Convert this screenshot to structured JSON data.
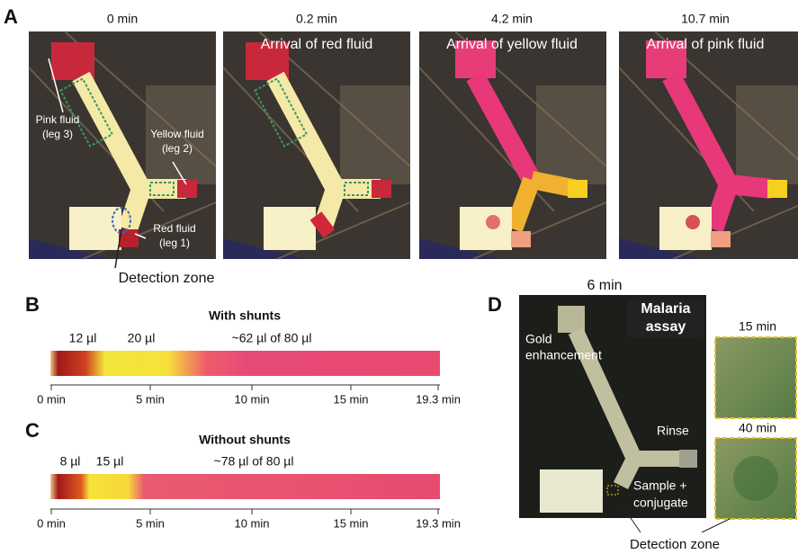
{
  "panel_a": {
    "label": "A",
    "frames": [
      {
        "time": "0 min"
      },
      {
        "time": "0.2 min",
        "caption": "Arrival of red fluid"
      },
      {
        "time": "4.2 min",
        "caption": "Arrival of yellow fluid"
      },
      {
        "time": "10.7 min",
        "caption": "Arrival of pink fluid"
      }
    ],
    "annotations": {
      "pink": [
        "Pink fluid",
        "(leg 3)"
      ],
      "yellow": [
        "Yellow fluid",
        "(leg 2)"
      ],
      "red": [
        "Red fluid",
        "(leg 1)"
      ],
      "detection": "Detection zone"
    }
  },
  "panel_b": {
    "label": "B",
    "title": "With shunts",
    "volumes": [
      "12 µl",
      "20 µl",
      "~62 µl of 80 µl"
    ],
    "ticks": [
      "0 min",
      "5 min",
      "10 min",
      "15 min",
      "19.3 min"
    ]
  },
  "panel_c": {
    "label": "C",
    "title": "Without shunts",
    "volumes": [
      "8 µl",
      "15 µl",
      "~78 µl of 80 µl"
    ],
    "ticks": [
      "0 min",
      "5 min",
      "10 min",
      "15 min",
      "19.3 min"
    ]
  },
  "panel_d": {
    "label": "D",
    "time": "6 min",
    "badge": [
      "Malaria",
      "assay"
    ],
    "gold": [
      "Gold",
      "enhancement"
    ],
    "rinse": "Rinse",
    "sample": [
      "Sample +",
      "conjugate"
    ],
    "detection": "Detection zone",
    "insets": [
      "15 min",
      "40 min"
    ]
  }
}
